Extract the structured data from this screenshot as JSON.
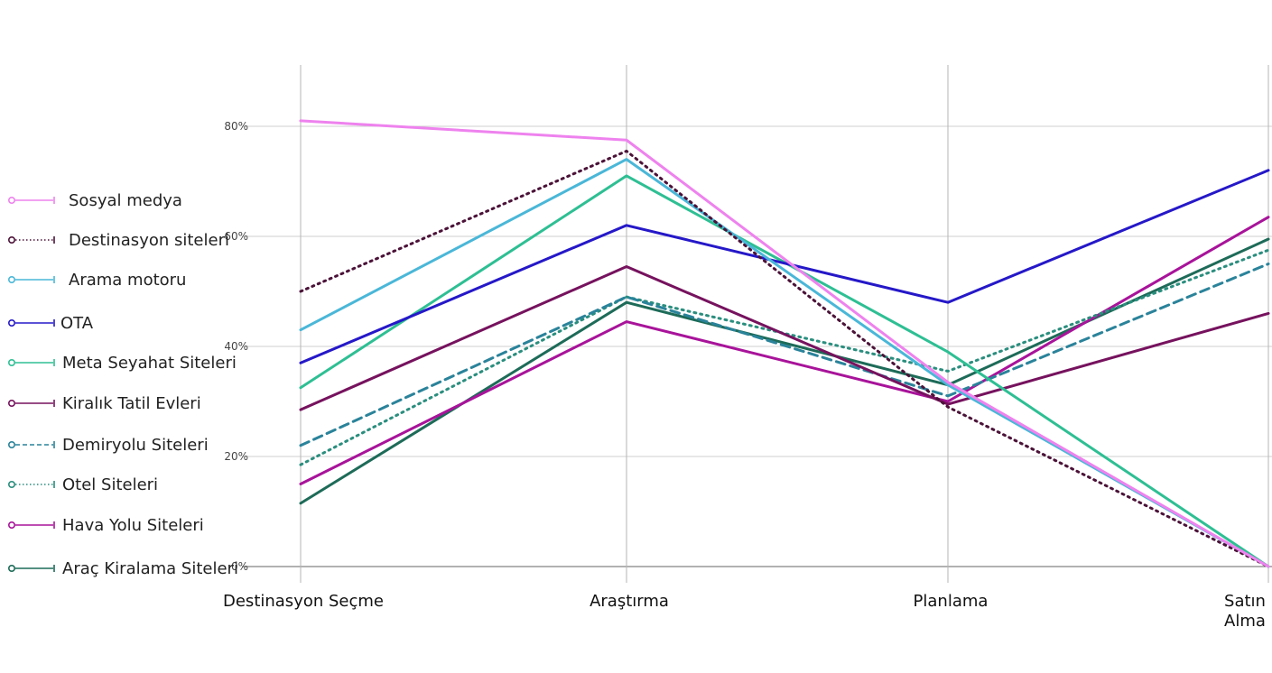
{
  "chart_data": {
    "type": "line",
    "title": "",
    "xlabel": "",
    "ylabel": "",
    "categories": [
      [
        "Destinasyon Seçme"
      ],
      [
        "Araştırma"
      ],
      [
        "Planlama"
      ],
      [
        "Satın",
        "Alma"
      ]
    ],
    "y_ticks": [
      "80%",
      "60%",
      "40%",
      "20%",
      "0%"
    ],
    "ylim": [
      0,
      0.9
    ],
    "grid": true,
    "legend_position": "left",
    "series": [
      {
        "name": "Sosyal medya",
        "values": [
          0.81,
          0.775,
          0.335,
          0.0
        ],
        "color": "#ee82ee",
        "style": "solid"
      },
      {
        "name": "Destinasyon siteleri",
        "values": [
          0.5,
          0.755,
          0.29,
          0.0
        ],
        "color": "#4b1238",
        "style": "dotted"
      },
      {
        "name": "Arama motoru",
        "values": [
          0.43,
          0.74,
          0.33,
          0.0
        ],
        "color": "#4ab7d8",
        "style": "solid"
      },
      {
        "name": "OTA",
        "values": [
          0.37,
          0.62,
          0.48,
          0.72
        ],
        "color": "#2518c8",
        "style": "solid"
      },
      {
        "name": "Meta Seyahat Siteleri",
        "values": [
          0.325,
          0.71,
          0.39,
          0.0
        ],
        "color": "#2ebf93",
        "style": "solid"
      },
      {
        "name": "Kiralık Tatil Evleri",
        "values": [
          0.285,
          0.545,
          0.295,
          0.46
        ],
        "color": "#76125e",
        "style": "solid"
      },
      {
        "name": "Demiryolu Siteleri",
        "values": [
          0.22,
          0.49,
          0.31,
          0.55
        ],
        "color": "#2a839a",
        "style": "dashed"
      },
      {
        "name": "Otel Siteleri",
        "values": [
          0.185,
          0.49,
          0.355,
          0.575
        ],
        "color": "#2a8e7e",
        "style": "dotted"
      },
      {
        "name": "Hava Yolu Siteleri",
        "values": [
          0.15,
          0.445,
          0.3,
          0.635
        ],
        "color": "#a8139a",
        "style": "solid"
      },
      {
        "name": "Araç Kiralama Siteleri",
        "values": [
          0.115,
          0.48,
          0.33,
          0.595
        ],
        "color": "#1d6b58",
        "style": "solid"
      }
    ]
  }
}
